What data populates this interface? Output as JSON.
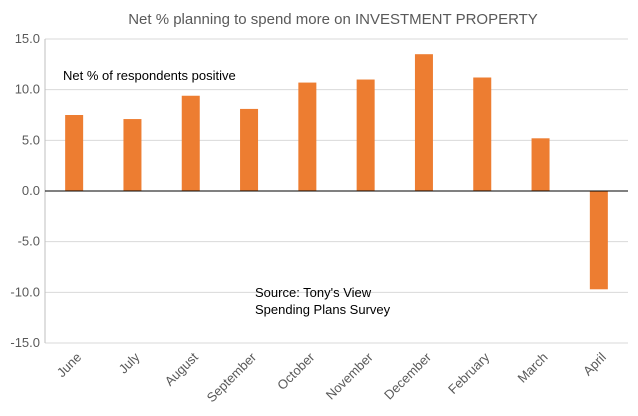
{
  "chart_data": {
    "type": "bar",
    "title": "Net % planning to spend more on INVESTMENT PROPERTY",
    "xlabel": "",
    "ylabel": "",
    "categories": [
      "June",
      "July",
      "August",
      "September",
      "October",
      "November",
      "December",
      "February",
      "March",
      "April"
    ],
    "values": [
      7.5,
      7.1,
      9.4,
      8.1,
      10.7,
      11.0,
      13.5,
      11.2,
      5.2,
      -9.7
    ],
    "ylim": [
      -15.0,
      15.0
    ],
    "yticks": [
      15.0,
      10.0,
      5.0,
      0.0,
      -5.0,
      -10.0,
      -15.0
    ],
    "ytick_labels": [
      "15.0",
      "10.0",
      "5.0",
      "0.0",
      "-5.0",
      "-10.0",
      "-15.0"
    ],
    "grid": true,
    "legend": "none",
    "bar_color": "#ED7D31",
    "annotations": {
      "label": "Net % of respondents positive",
      "source_line1": "Source: Tony's View",
      "source_line2": "Spending Plans Survey"
    }
  }
}
